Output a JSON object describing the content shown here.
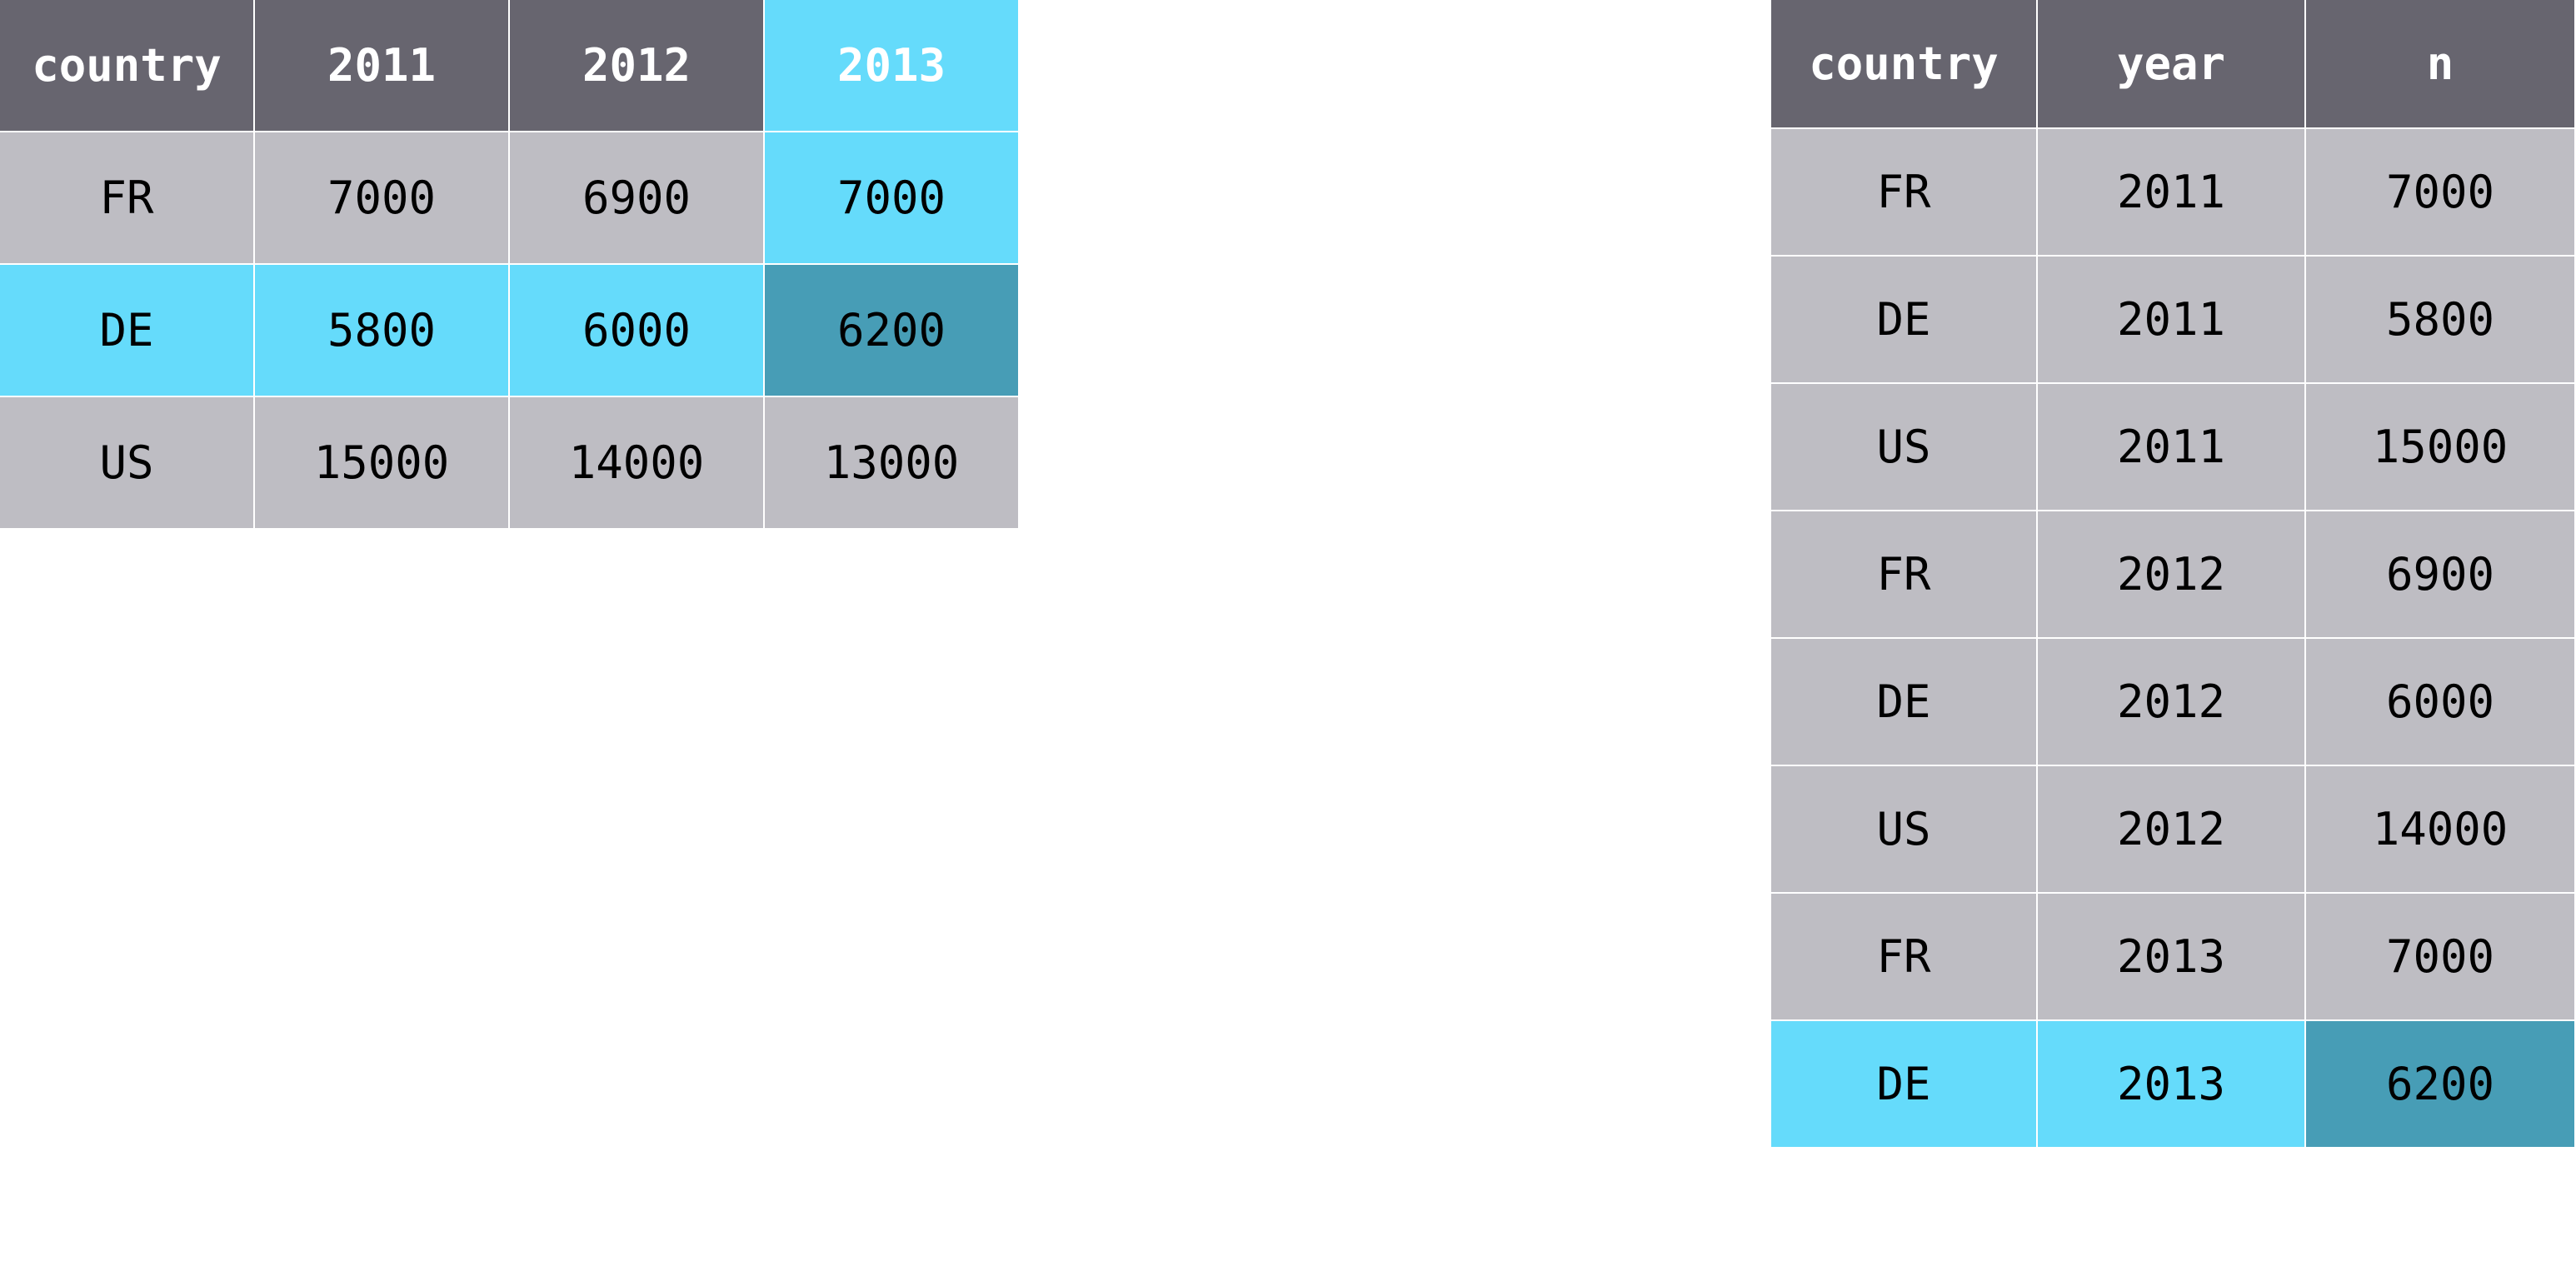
{
  "colors": {
    "header": "#67656f",
    "cell": "#bebdc3",
    "highlight": "#65dbfb",
    "highlight_dark": "#479db6",
    "header_text": "#ffffff",
    "cell_text": "#000000"
  },
  "wide_table": {
    "headers": [
      {
        "label": "country",
        "style": "header"
      },
      {
        "label": "2011",
        "style": "header"
      },
      {
        "label": "2012",
        "style": "header"
      },
      {
        "label": "2013",
        "style": "highlight"
      }
    ],
    "rows": [
      {
        "cells": [
          {
            "value": "FR",
            "style": "cell"
          },
          {
            "value": "7000",
            "style": "cell"
          },
          {
            "value": "6900",
            "style": "cell"
          },
          {
            "value": "7000",
            "style": "highlight"
          }
        ]
      },
      {
        "cells": [
          {
            "value": "DE",
            "style": "highlight"
          },
          {
            "value": "5800",
            "style": "highlight"
          },
          {
            "value": "6000",
            "style": "highlight"
          },
          {
            "value": "6200",
            "style": "highlight_dark"
          }
        ]
      },
      {
        "cells": [
          {
            "value": "US",
            "style": "cell"
          },
          {
            "value": "15000",
            "style": "cell"
          },
          {
            "value": "14000",
            "style": "cell"
          },
          {
            "value": "13000",
            "style": "cell"
          }
        ]
      }
    ]
  },
  "long_table": {
    "headers": [
      {
        "label": "country",
        "style": "header"
      },
      {
        "label": "year",
        "style": "header"
      },
      {
        "label": "n",
        "style": "header"
      }
    ],
    "rows": [
      {
        "cells": [
          {
            "value": "FR",
            "style": "cell"
          },
          {
            "value": "2011",
            "style": "cell"
          },
          {
            "value": "7000",
            "style": "cell"
          }
        ]
      },
      {
        "cells": [
          {
            "value": "DE",
            "style": "cell"
          },
          {
            "value": "2011",
            "style": "cell"
          },
          {
            "value": "5800",
            "style": "cell"
          }
        ]
      },
      {
        "cells": [
          {
            "value": "US",
            "style": "cell"
          },
          {
            "value": "2011",
            "style": "cell"
          },
          {
            "value": "15000",
            "style": "cell"
          }
        ]
      },
      {
        "cells": [
          {
            "value": "FR",
            "style": "cell"
          },
          {
            "value": "2012",
            "style": "cell"
          },
          {
            "value": "6900",
            "style": "cell"
          }
        ]
      },
      {
        "cells": [
          {
            "value": "DE",
            "style": "cell"
          },
          {
            "value": "2012",
            "style": "cell"
          },
          {
            "value": "6000",
            "style": "cell"
          }
        ]
      },
      {
        "cells": [
          {
            "value": "US",
            "style": "cell"
          },
          {
            "value": "2012",
            "style": "cell"
          },
          {
            "value": "14000",
            "style": "cell"
          }
        ]
      },
      {
        "cells": [
          {
            "value": "FR",
            "style": "cell"
          },
          {
            "value": "2013",
            "style": "cell"
          },
          {
            "value": "7000",
            "style": "cell"
          }
        ]
      },
      {
        "cells": [
          {
            "value": "DE",
            "style": "highlight"
          },
          {
            "value": "2013",
            "style": "highlight"
          },
          {
            "value": "6200",
            "style": "highlight_dark"
          }
        ]
      }
    ]
  }
}
